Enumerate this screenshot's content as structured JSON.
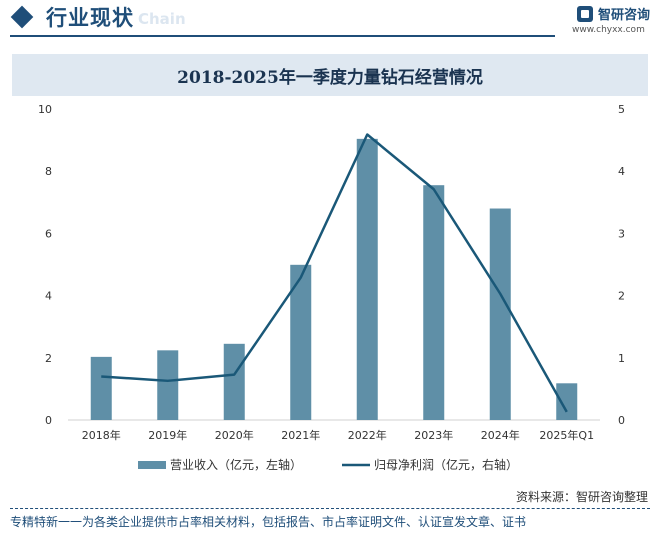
{
  "header": {
    "section_title": "行业现状",
    "section_title_en": "Chain",
    "brand_name": "智研咨询",
    "brand_url": "www.chyxx.com"
  },
  "footer": {
    "source": "资料来源：智研咨询整理",
    "tagline": "专精特新一一为各类企业提供市占率相关材料，包括报告、市占率证明文件、认证宣发文章、证书"
  },
  "colors": {
    "bar": "#5f8fa7",
    "line": "#1a5878",
    "accent": "#1f4e79"
  },
  "chart_data": {
    "type": "bar",
    "title": "2018-2025年一季度力量钻石经营情况",
    "categories": [
      "2018年",
      "2019年",
      "2020年",
      "2021年",
      "2022年",
      "2023年",
      "2024年",
      "2025年Q1"
    ],
    "series": [
      {
        "name": "营业收入（亿元，左轴）",
        "type": "bar",
        "axis": "left",
        "values": [
          2.03,
          2.24,
          2.45,
          4.99,
          9.04,
          7.55,
          6.8,
          1.18
        ]
      },
      {
        "name": "归母净利润（亿元，右轴）",
        "type": "line",
        "axis": "right",
        "values": [
          0.7,
          0.63,
          0.73,
          2.29,
          4.59,
          3.71,
          2.03,
          0.13
        ]
      }
    ],
    "y_left": {
      "min": 0,
      "max": 10,
      "ticks": [
        "0",
        "2",
        "4",
        "6",
        "8",
        "10"
      ]
    },
    "y_right": {
      "min": 0,
      "max": 5,
      "ticks": [
        "0",
        "1",
        "2",
        "3",
        "4",
        "5"
      ]
    },
    "grid": false,
    "legend": "bottom"
  }
}
